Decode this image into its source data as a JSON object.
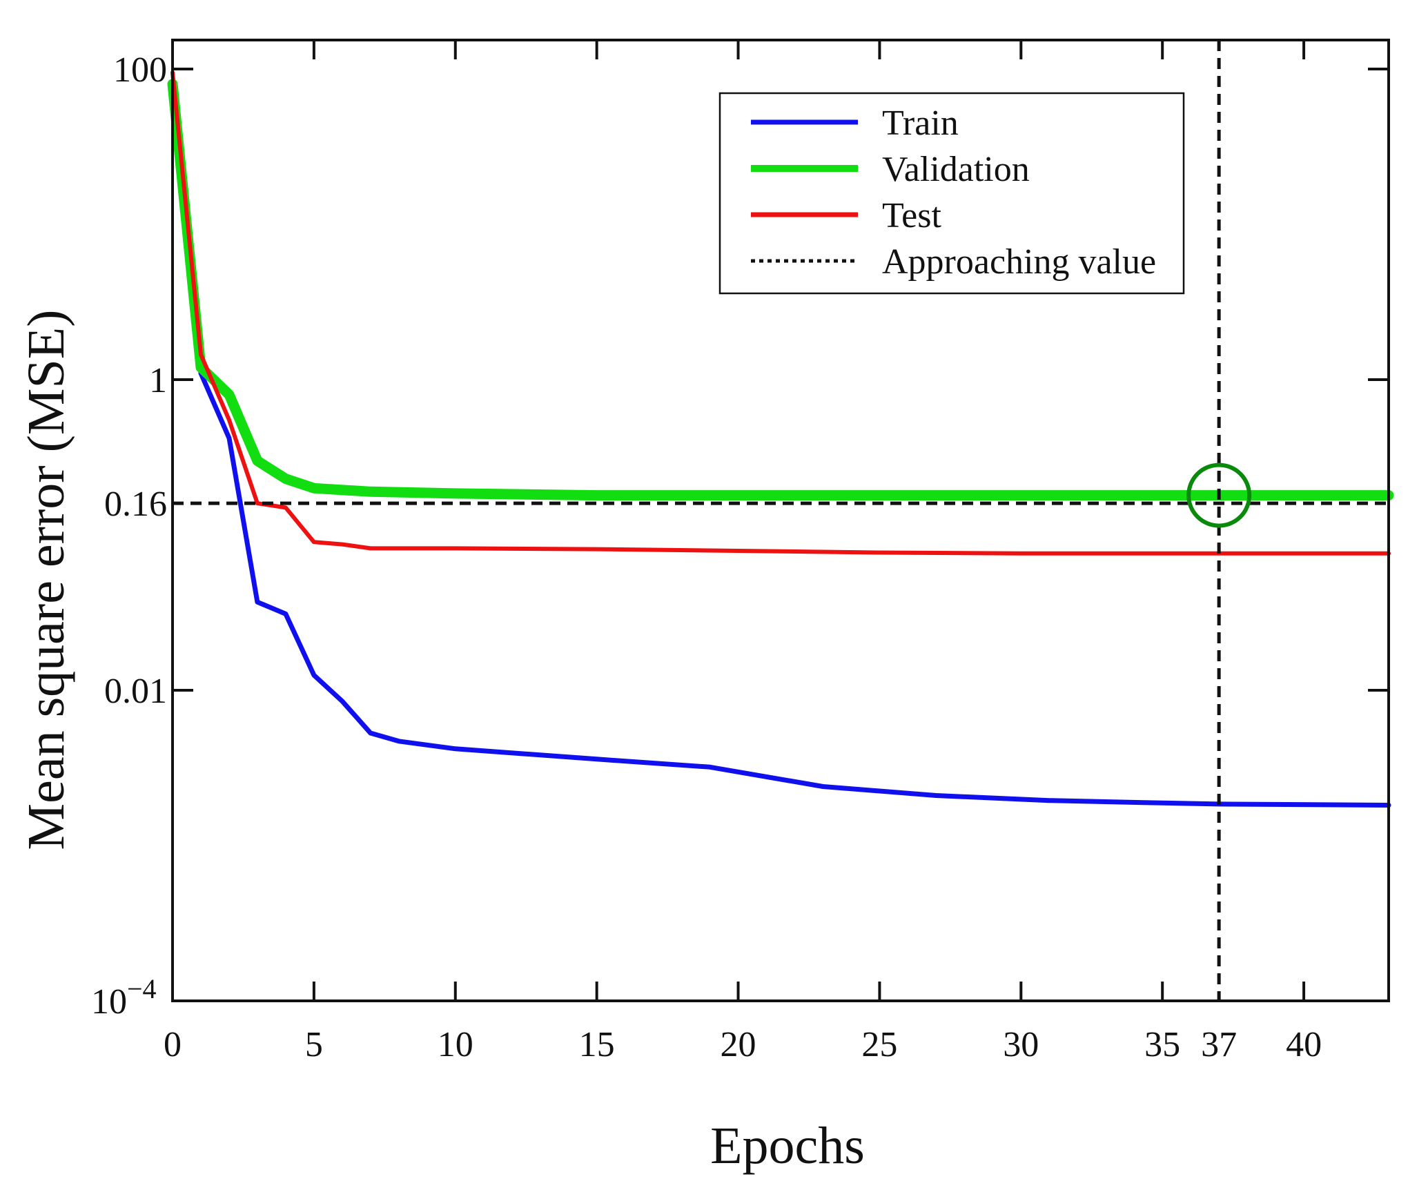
{
  "chart_data": {
    "type": "line",
    "xlabel": "Epochs",
    "ylabel": "Mean square error (MSE)",
    "yscale": "log",
    "xlim": [
      0,
      43
    ],
    "ylim": [
      0.0001,
      100
    ],
    "x_ticks": [
      0,
      5,
      10,
      15,
      20,
      25,
      30,
      35,
      37,
      40
    ],
    "x_tick_labels": [
      "0",
      "5",
      "10",
      "15",
      "20",
      "25",
      "30",
      "35",
      "37",
      "40"
    ],
    "y_ticks": [
      0.0001,
      0.01,
      0.16,
      1,
      100
    ],
    "y_tick_labels": [
      {
        "base": "10",
        "exp": "−4"
      },
      {
        "text": "0.01"
      },
      {
        "text": "0.16"
      },
      {
        "text": "1"
      },
      {
        "text": "100"
      }
    ],
    "series": [
      {
        "name": "Train",
        "color": "#1010ee",
        "x": [
          0,
          1,
          2,
          3,
          4,
          5,
          6,
          7,
          8,
          10,
          15,
          19,
          23,
          27,
          31,
          35,
          37,
          43
        ],
        "values": [
          80,
          1.1,
          0.42,
          0.037,
          0.031,
          0.0125,
          0.0085,
          0.0053,
          0.0047,
          0.0042,
          0.0036,
          0.0032,
          0.0024,
          0.0021,
          0.00195,
          0.00188,
          0.00185,
          0.00182
        ]
      },
      {
        "name": "Validation",
        "color": "#11dd11",
        "x": [
          0,
          1,
          2,
          3,
          4,
          5,
          7,
          10,
          15,
          20,
          30,
          37,
          43
        ],
        "values": [
          80,
          1.2,
          0.8,
          0.3,
          0.23,
          0.2,
          0.19,
          0.185,
          0.18,
          0.18,
          0.18,
          0.18,
          0.18
        ]
      },
      {
        "name": "Test",
        "color": "#ee1111",
        "x": [
          0,
          1,
          2,
          3,
          4,
          5,
          6,
          7,
          10,
          15,
          20,
          25,
          30,
          37,
          43
        ],
        "values": [
          95,
          1.45,
          0.55,
          0.16,
          0.15,
          0.09,
          0.087,
          0.082,
          0.082,
          0.081,
          0.079,
          0.077,
          0.076,
          0.076,
          0.076
        ]
      }
    ],
    "reference_lines": {
      "name": "Approaching value",
      "y": 0.16,
      "x": 37
    },
    "marker": {
      "x": 37,
      "y": 0.18,
      "color": "#0a8a0a"
    },
    "legend": {
      "position": "top-right",
      "entries": [
        {
          "label": "Train",
          "color": "#1010ee",
          "style": "solid"
        },
        {
          "label": "Validation",
          "color": "#11dd11",
          "style": "solid"
        },
        {
          "label": "Test",
          "color": "#ee1111",
          "style": "solid"
        },
        {
          "label": "Approaching value",
          "color": "#111111",
          "style": "dotted"
        }
      ]
    }
  }
}
